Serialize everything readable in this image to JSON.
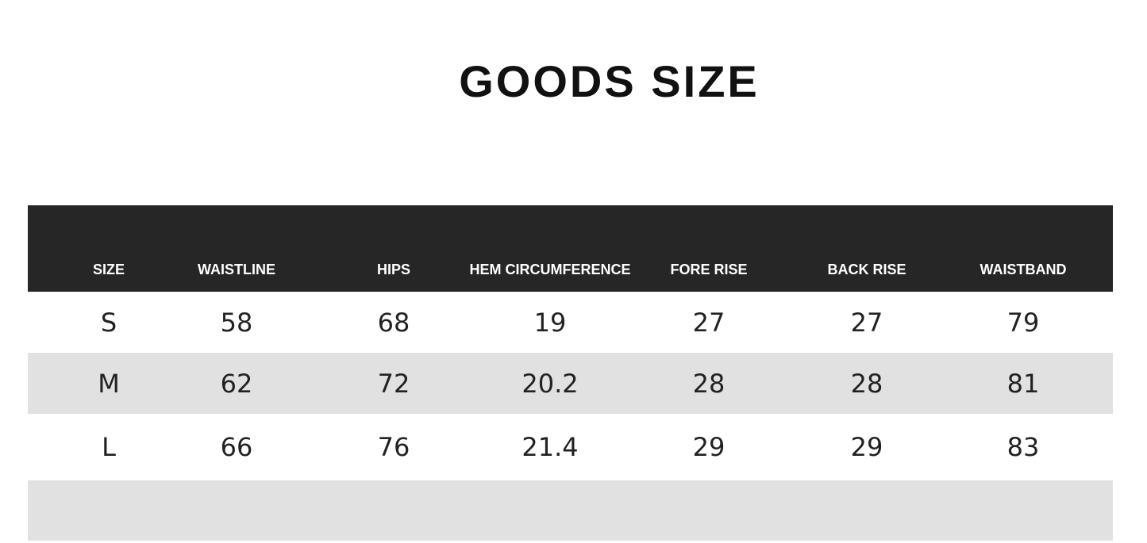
{
  "header": {
    "title": "GOODS SIZE"
  },
  "table": {
    "columns": [
      "SIZE",
      "WAISTLINE",
      "HIPS",
      "HEM CIRCUMFERENCE",
      "FORE RISE",
      "BACK RISE",
      "WAISTBAND"
    ],
    "rows": [
      [
        "S",
        "58",
        "68",
        "19",
        "27",
        "27",
        "79"
      ],
      [
        "M",
        "62",
        "72",
        "20.2",
        "28",
        "28",
        "81"
      ],
      [
        "L",
        "66",
        "76",
        "21.4",
        "29",
        "29",
        "83"
      ]
    ]
  }
}
